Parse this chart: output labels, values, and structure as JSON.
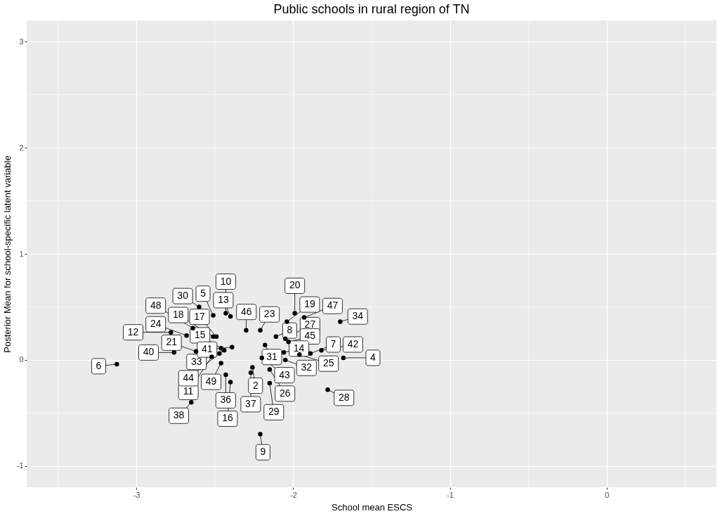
{
  "chart_data": {
    "type": "scatter",
    "title": "Public schools in rural region of TN",
    "xlabel": "School mean ESCS",
    "ylabel": "Posterior Mean for school-specific latent variable",
    "x": [
      -3.125,
      -2.76,
      -2.78,
      -2.68,
      -2.62,
      -2.52,
      -2.47,
      -2.46,
      -2.44,
      -2.39,
      -2.6,
      -2.51,
      -2.43,
      -2.4,
      -2.64,
      -2.49,
      -2.51,
      -2.65,
      -2.43,
      -2.46,
      -2.4,
      -2.27,
      -2.26,
      -2.3,
      -2.18,
      -2.21,
      -2.11,
      -1.99,
      -2.04,
      -1.93,
      -1.7,
      -2.05,
      -2.03,
      -1.82,
      -2.06,
      -2.05,
      -1.96,
      -1.89,
      -1.68,
      -2.15,
      -2.15,
      -1.78,
      -2.21,
      -2.2
    ],
    "values": [
      -0.04,
      0.07,
      0.26,
      0.23,
      0.08,
      0.03,
      0.06,
      0.11,
      0.09,
      0.12,
      0.5,
      0.42,
      0.44,
      0.41,
      0.3,
      0.22,
      0.22,
      -0.4,
      -0.14,
      -0.03,
      -0.21,
      -0.12,
      -0.07,
      0.28,
      0.14,
      0.28,
      0.22,
      0.44,
      0.36,
      0.4,
      0.36,
      0.2,
      0.17,
      0.09,
      0.07,
      0.0,
      0.05,
      0.06,
      0.02,
      -0.09,
      -0.22,
      -0.28,
      -0.7,
      0.02
    ],
    "color": "#000000",
    "marker": "circle",
    "grid": true,
    "xlim": [
      -3.7,
      0.7
    ],
    "xticks": [
      -3,
      -2,
      -1,
      0
    ],
    "ylim": [
      -1.2,
      3.2
    ],
    "yticks": [
      -1,
      0,
      1,
      2,
      3
    ],
    "annotations": [
      {
        "text": "6",
        "x": -3.125,
        "y": -0.04
      },
      {
        "text": "40",
        "x": -2.76,
        "y": 0.07
      },
      {
        "text": "12",
        "x": -2.78,
        "y": 0.26
      },
      {
        "text": "24",
        "x": -2.68,
        "y": 0.23
      },
      {
        "text": "21",
        "x": -2.62,
        "y": 0.08
      },
      {
        "text": "11",
        "x": -2.52,
        "y": 0.03
      },
      {
        "text": "44",
        "x": -2.47,
        "y": 0.06
      },
      {
        "text": "15",
        "x": -2.46,
        "y": 0.11
      },
      {
        "text": "33",
        "x": -2.44,
        "y": 0.09
      },
      {
        "text": "41",
        "x": -2.39,
        "y": 0.12
      },
      {
        "text": "30",
        "x": -2.6,
        "y": 0.5
      },
      {
        "text": "5",
        "x": -2.51,
        "y": 0.42
      },
      {
        "text": "10",
        "x": -2.43,
        "y": 0.44
      },
      {
        "text": "13",
        "x": -2.4,
        "y": 0.41
      },
      {
        "text": "48",
        "x": -2.64,
        "y": 0.3
      },
      {
        "text": "17",
        "x": -2.49,
        "y": 0.22
      },
      {
        "text": "18",
        "x": -2.51,
        "y": 0.22
      },
      {
        "text": "38",
        "x": -2.65,
        "y": -0.4
      },
      {
        "text": "36",
        "x": -2.43,
        "y": -0.14
      },
      {
        "text": "49",
        "x": -2.46,
        "y": -0.03
      },
      {
        "text": "16",
        "x": -2.4,
        "y": -0.21
      },
      {
        "text": "37",
        "x": -2.27,
        "y": -0.12
      },
      {
        "text": "2",
        "x": -2.26,
        "y": -0.07
      },
      {
        "text": "46",
        "x": -2.3,
        "y": 0.28
      },
      {
        "text": "31",
        "x": -2.18,
        "y": 0.14
      },
      {
        "text": "23",
        "x": -2.21,
        "y": 0.28
      },
      {
        "text": "8",
        "x": -2.11,
        "y": 0.22
      },
      {
        "text": "20",
        "x": -1.99,
        "y": 0.44
      },
      {
        "text": "19",
        "x": -2.04,
        "y": 0.36
      },
      {
        "text": "47",
        "x": -1.93,
        "y": 0.4
      },
      {
        "text": "34",
        "x": -1.7,
        "y": 0.36
      },
      {
        "text": "27",
        "x": -2.05,
        "y": 0.2
      },
      {
        "text": "45",
        "x": -2.03,
        "y": 0.17
      },
      {
        "text": "42",
        "x": -1.82,
        "y": 0.09
      },
      {
        "text": "14",
        "x": -2.06,
        "y": 0.07
      },
      {
        "text": "32",
        "x": -2.05,
        "y": 0.0
      },
      {
        "text": "25",
        "x": -1.96,
        "y": 0.05
      },
      {
        "text": "7",
        "x": -1.89,
        "y": 0.06
      },
      {
        "text": "4",
        "x": -1.68,
        "y": 0.02
      },
      {
        "text": "26",
        "x": -2.15,
        "y": -0.09
      },
      {
        "text": "29",
        "x": -2.15,
        "y": -0.22
      },
      {
        "text": "28",
        "x": -1.78,
        "y": -0.28
      },
      {
        "text": "9",
        "x": -2.21,
        "y": -0.7
      },
      {
        "text": "43",
        "x": -2.2,
        "y": 0.02
      }
    ]
  }
}
